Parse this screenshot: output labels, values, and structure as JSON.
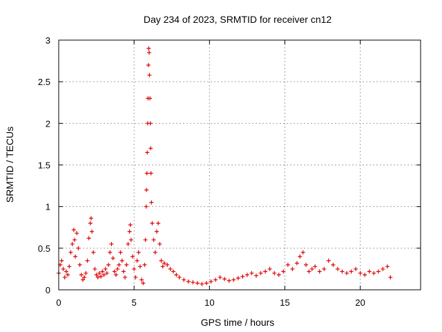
{
  "chart_data": {
    "type": "scatter",
    "title": "Day 234 of 2023, SRMTID for receiver cn12",
    "xlabel": "GPS time / hours",
    "ylabel": "SRMTID / TECUs",
    "xlim": [
      0,
      24
    ],
    "ylim": [
      0,
      3
    ],
    "xticks": [
      0,
      5,
      10,
      15,
      20
    ],
    "xtick_labels": [
      "0",
      "5",
      "10",
      "15",
      "20"
    ],
    "yticks": [
      0,
      0.5,
      1,
      1.5,
      2,
      2.5,
      3
    ],
    "ytick_labels": [
      "0",
      "0.5",
      "1",
      "1.5",
      "2",
      "2.5",
      "3"
    ],
    "grid": true,
    "marker": "+",
    "color": "#e00000",
    "series": [
      {
        "name": "SRMTID",
        "points": [
          [
            0.0,
            0.2
          ],
          [
            0.1,
            0.3
          ],
          [
            0.2,
            0.35
          ],
          [
            0.3,
            0.25
          ],
          [
            0.4,
            0.15
          ],
          [
            0.5,
            0.22
          ],
          [
            0.6,
            0.18
          ],
          [
            0.7,
            0.28
          ],
          [
            0.8,
            0.45
          ],
          [
            0.9,
            0.55
          ],
          [
            1.0,
            0.72
          ],
          [
            1.05,
            0.6
          ],
          [
            1.1,
            0.4
          ],
          [
            1.2,
            0.68
          ],
          [
            1.3,
            0.5
          ],
          [
            1.4,
            0.3
          ],
          [
            1.5,
            0.18
          ],
          [
            1.6,
            0.12
          ],
          [
            1.7,
            0.15
          ],
          [
            1.8,
            0.2
          ],
          [
            1.9,
            0.35
          ],
          [
            2.0,
            0.62
          ],
          [
            2.1,
            0.8
          ],
          [
            2.15,
            0.86
          ],
          [
            2.2,
            0.7
          ],
          [
            2.3,
            0.45
          ],
          [
            2.4,
            0.25
          ],
          [
            2.5,
            0.18
          ],
          [
            2.6,
            0.15
          ],
          [
            2.7,
            0.2
          ],
          [
            2.8,
            0.16
          ],
          [
            2.9,
            0.22
          ],
          [
            3.0,
            0.18
          ],
          [
            3.1,
            0.25
          ],
          [
            3.2,
            0.2
          ],
          [
            3.3,
            0.3
          ],
          [
            3.4,
            0.45
          ],
          [
            3.5,
            0.55
          ],
          [
            3.6,
            0.38
          ],
          [
            3.7,
            0.22
          ],
          [
            3.8,
            0.18
          ],
          [
            3.9,
            0.25
          ],
          [
            4.0,
            0.3
          ],
          [
            4.1,
            0.45
          ],
          [
            4.2,
            0.35
          ],
          [
            4.3,
            0.22
          ],
          [
            4.4,
            0.15
          ],
          [
            4.5,
            0.3
          ],
          [
            4.6,
            0.55
          ],
          [
            4.7,
            0.7
          ],
          [
            4.75,
            0.78
          ],
          [
            4.8,
            0.6
          ],
          [
            4.9,
            0.4
          ],
          [
            5.0,
            0.25
          ],
          [
            5.1,
            0.15
          ],
          [
            5.2,
            0.35
          ],
          [
            5.3,
            0.45
          ],
          [
            5.4,
            0.28
          ],
          [
            5.5,
            0.12
          ],
          [
            5.6,
            0.08
          ],
          [
            5.7,
            0.3
          ],
          [
            5.75,
            0.6
          ],
          [
            5.8,
            1.0
          ],
          [
            5.82,
            1.2
          ],
          [
            5.85,
            1.4
          ],
          [
            5.87,
            1.65
          ],
          [
            5.9,
            2.0
          ],
          [
            5.92,
            2.3
          ],
          [
            5.95,
            2.7
          ],
          [
            5.97,
            2.9
          ],
          [
            6.0,
            2.85
          ],
          [
            6.02,
            2.58
          ],
          [
            6.05,
            2.3
          ],
          [
            6.08,
            2.0
          ],
          [
            6.1,
            1.7
          ],
          [
            6.12,
            1.4
          ],
          [
            6.15,
            1.05
          ],
          [
            6.2,
            0.8
          ],
          [
            6.3,
            0.6
          ],
          [
            6.4,
            0.45
          ],
          [
            6.5,
            0.7
          ],
          [
            6.6,
            0.8
          ],
          [
            6.7,
            0.55
          ],
          [
            6.8,
            0.35
          ],
          [
            6.9,
            0.28
          ],
          [
            7.0,
            0.32
          ],
          [
            7.2,
            0.3
          ],
          [
            7.4,
            0.25
          ],
          [
            7.6,
            0.22
          ],
          [
            7.8,
            0.18
          ],
          [
            8.0,
            0.15
          ],
          [
            8.3,
            0.12
          ],
          [
            8.6,
            0.1
          ],
          [
            8.9,
            0.09
          ],
          [
            9.2,
            0.08
          ],
          [
            9.5,
            0.07
          ],
          [
            9.8,
            0.08
          ],
          [
            10.1,
            0.1
          ],
          [
            10.4,
            0.12
          ],
          [
            10.7,
            0.15
          ],
          [
            11.0,
            0.13
          ],
          [
            11.3,
            0.11
          ],
          [
            11.6,
            0.12
          ],
          [
            11.9,
            0.14
          ],
          [
            12.2,
            0.16
          ],
          [
            12.5,
            0.18
          ],
          [
            12.8,
            0.2
          ],
          [
            13.1,
            0.17
          ],
          [
            13.4,
            0.2
          ],
          [
            13.7,
            0.22
          ],
          [
            14.0,
            0.25
          ],
          [
            14.3,
            0.2
          ],
          [
            14.6,
            0.18
          ],
          [
            14.9,
            0.22
          ],
          [
            15.2,
            0.3
          ],
          [
            15.5,
            0.25
          ],
          [
            15.8,
            0.32
          ],
          [
            16.0,
            0.4
          ],
          [
            16.2,
            0.45
          ],
          [
            16.4,
            0.3
          ],
          [
            16.6,
            0.22
          ],
          [
            16.8,
            0.25
          ],
          [
            17.0,
            0.28
          ],
          [
            17.3,
            0.22
          ],
          [
            17.6,
            0.25
          ],
          [
            17.9,
            0.35
          ],
          [
            18.2,
            0.3
          ],
          [
            18.5,
            0.25
          ],
          [
            18.8,
            0.22
          ],
          [
            19.1,
            0.2
          ],
          [
            19.4,
            0.22
          ],
          [
            19.7,
            0.25
          ],
          [
            20.0,
            0.2
          ],
          [
            20.3,
            0.18
          ],
          [
            20.6,
            0.22
          ],
          [
            20.9,
            0.2
          ],
          [
            21.2,
            0.22
          ],
          [
            21.5,
            0.25
          ],
          [
            21.8,
            0.28
          ],
          [
            22.0,
            0.15
          ]
        ]
      }
    ]
  }
}
